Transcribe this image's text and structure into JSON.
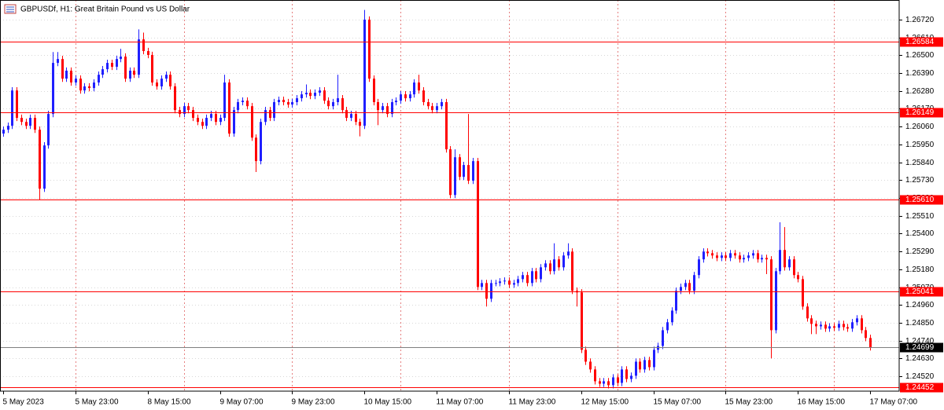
{
  "chart_data": {
    "type": "candlestick",
    "title": "GBPUSDf, H1:  Great Britain Pound vs US Dollar",
    "up_color": "#1f1fff",
    "down_color": "#ff0000",
    "hline_color": "#ff0000",
    "grid": true,
    "ylim": [
      1.24428,
      1.26841
    ],
    "yticks": [
      {
        "value": 1.2672,
        "label": "1.26720"
      },
      {
        "value": 1.2661,
        "label": "1.26610"
      },
      {
        "value": 1.265,
        "label": "1.26500"
      },
      {
        "value": 1.2639,
        "label": "1.26390"
      },
      {
        "value": 1.2628,
        "label": "1.26280"
      },
      {
        "value": 1.2617,
        "label": "1.26170"
      },
      {
        "value": 1.2606,
        "label": "1.26060"
      },
      {
        "value": 1.2595,
        "label": "1.25950"
      },
      {
        "value": 1.2584,
        "label": "1.25840"
      },
      {
        "value": 1.2573,
        "label": "1.25730"
      },
      {
        "value": 1.2562,
        "label": "1.25620"
      },
      {
        "value": 1.2551,
        "label": "1.25510"
      },
      {
        "value": 1.254,
        "label": "1.25400"
      },
      {
        "value": 1.2529,
        "label": "1.25290"
      },
      {
        "value": 1.2518,
        "label": "1.25180"
      },
      {
        "value": 1.2507,
        "label": "1.25070"
      },
      {
        "value": 1.2496,
        "label": "1.24960"
      },
      {
        "value": 1.2485,
        "label": "1.24850"
      },
      {
        "value": 1.2474,
        "label": "1.24740"
      },
      {
        "value": 1.2463,
        "label": "1.24630"
      },
      {
        "value": 1.2452,
        "label": "1.24520"
      }
    ],
    "hlines": [
      1.26584,
      1.26149,
      {
        "value": 1.2561,
        "label": "1.25610"
      },
      1.25041,
      1.24452
    ],
    "categories": [
      "5 May 2023",
      null,
      null,
      null,
      null,
      null,
      null,
      null,
      null,
      null,
      null,
      null,
      null,
      null,
      null,
      null,
      "5 May 23:00",
      null,
      null,
      null,
      null,
      null,
      null,
      null,
      null,
      null,
      null,
      null,
      null,
      null,
      null,
      null,
      "8 May 15:00",
      null,
      null,
      null,
      null,
      null,
      null,
      null,
      null,
      null,
      null,
      null,
      null,
      null,
      null,
      null,
      "9 May 07:00",
      null,
      null,
      null,
      null,
      null,
      null,
      null,
      null,
      null,
      null,
      null,
      null,
      null,
      null,
      null,
      "9 May 23:00",
      null,
      null,
      null,
      null,
      null,
      null,
      null,
      null,
      null,
      null,
      null,
      null,
      null,
      null,
      null,
      "10 May 15:00",
      null,
      null,
      null,
      null,
      null,
      null,
      null,
      null,
      null,
      null,
      null,
      null,
      null,
      null,
      null,
      "11 May 07:00",
      null,
      null,
      null,
      null,
      null,
      null,
      null,
      null,
      null,
      null,
      null,
      null,
      null,
      null,
      null,
      "11 May 23:00",
      null,
      null,
      null,
      null,
      null,
      null,
      null,
      null,
      null,
      null,
      null,
      null,
      null,
      null,
      null,
      "12 May 15:00",
      null,
      null,
      null,
      null,
      null,
      null,
      null,
      null,
      null,
      null,
      null,
      null,
      null,
      null,
      null,
      "15 May 07:00",
      null,
      null,
      null,
      null,
      null,
      null,
      null,
      null,
      null,
      null,
      null,
      null,
      null,
      null,
      null,
      "15 May 23:00",
      null,
      null,
      null,
      null,
      null,
      null,
      null,
      null,
      null,
      null,
      null,
      null,
      null,
      null,
      null,
      "16 May 15:00",
      null,
      null,
      null,
      null,
      null,
      null,
      null,
      null,
      null,
      null,
      null,
      null,
      null,
      null,
      null,
      "17 May 07:00"
    ],
    "open": [
      1.26017,
      1.26041,
      1.26065,
      1.26283,
      1.26114,
      1.26089,
      1.26065,
      1.26114,
      1.26041,
      1.25677,
      1.25944,
      1.26138,
      1.26453,
      1.26477,
      1.26356,
      1.26405,
      1.26332,
      1.26356,
      1.26283,
      1.26308,
      1.26298,
      1.26332,
      1.2638,
      1.26414,
      1.26453,
      1.26429,
      1.26477,
      1.26492,
      1.26356,
      1.26405,
      1.2638,
      1.26598,
      1.26526,
      1.26502,
      1.26332,
      1.26308,
      1.26356,
      1.2638,
      1.26308,
      1.26162,
      1.26138,
      1.26186,
      1.26162,
      1.26114,
      1.26089,
      1.26065,
      1.26114,
      1.26138,
      1.26089,
      1.26114,
      1.26332,
      1.26017,
      1.26162,
      1.26211,
      1.2622,
      1.26186,
      1.25992,
      1.25847,
      1.26089,
      1.26162,
      1.26114,
      1.26211,
      1.26225,
      1.26211,
      1.26196,
      1.26211,
      1.26235,
      1.26259,
      1.26269,
      1.26249,
      1.26269,
      1.26283,
      1.2622,
      1.26186,
      1.26211,
      1.26235,
      1.26162,
      1.26114,
      1.26138,
      1.26089,
      1.26065,
      1.2672,
      1.26356,
      1.26211,
      1.26162,
      1.26186,
      1.26138,
      1.26211,
      1.2622,
      1.26259,
      1.26235,
      1.26259,
      1.26332,
      1.26283,
      1.26211,
      1.26186,
      1.26162,
      1.26186,
      1.26211,
      1.2592,
      1.25638,
      1.25871,
      1.2575,
      1.25823,
      1.25726,
      1.25847,
      1.25071,
      1.25095,
      1.24998,
      1.25095,
      1.25095,
      1.25105,
      1.2511,
      1.25085,
      1.25095,
      1.25119,
      1.25144,
      1.25095,
      1.25168,
      1.25119,
      1.25192,
      1.25216,
      1.25168,
      1.25241,
      1.25192,
      1.25265,
      1.25289,
      1.25047,
      1.25037,
      1.24683,
      1.2461,
      1.24562,
      1.24489,
      1.24474,
      1.24489,
      1.24465,
      1.24513,
      1.24479,
      1.24562,
      1.24503,
      1.24523,
      1.2461,
      1.24562,
      1.2462,
      1.24576,
      1.24683,
      1.24707,
      1.24804,
      1.24853,
      1.24925,
      1.25047,
      1.25071,
      1.25095,
      1.25047,
      1.25144,
      1.25241,
      1.25289,
      1.25279,
      1.25265,
      1.2525,
      1.25265,
      1.2525,
      1.25279,
      1.25265,
      1.25241,
      1.2525,
      1.25265,
      1.25279,
      1.25241,
      1.2525,
      1.25241,
      1.24804,
      1.25168,
      1.25299,
      1.25192,
      1.25241,
      1.25144,
      1.25119,
      1.2495,
      1.24877,
      1.24843,
      1.24828,
      1.24838,
      1.24814,
      1.24828,
      1.24819,
      1.24843,
      1.24823,
      1.24814,
      1.24853,
      1.24877,
      1.24804,
      1.24756
    ],
    "high": [
      1.26061,
      1.26085,
      1.26303,
      1.26303,
      1.26134,
      1.26109,
      1.26134,
      1.26134,
      1.26061,
      1.25964,
      1.26158,
      1.2652,
      1.2652,
      1.26497,
      1.26425,
      1.26425,
      1.26376,
      1.26376,
      1.26328,
      1.26328,
      1.26352,
      1.264,
      1.26434,
      1.26473,
      1.26473,
      1.26497,
      1.2654,
      1.26512,
      1.26425,
      1.26425,
      1.2666,
      1.2664,
      1.26546,
      1.26522,
      1.26352,
      1.26376,
      1.264,
      1.264,
      1.26328,
      1.26182,
      1.26206,
      1.26206,
      1.26182,
      1.26134,
      1.26109,
      1.26134,
      1.26158,
      1.26158,
      1.26134,
      1.2638,
      1.26352,
      1.26182,
      1.26231,
      1.2624,
      1.2624,
      1.26206,
      1.26012,
      1.26109,
      1.26182,
      1.26182,
      1.26231,
      1.26245,
      1.26245,
      1.26231,
      1.26231,
      1.26255,
      1.26279,
      1.2632,
      1.26289,
      1.26289,
      1.26303,
      1.26303,
      1.2624,
      1.26231,
      1.2638,
      1.26255,
      1.26182,
      1.26158,
      1.26158,
      1.26109,
      1.2678,
      1.2674,
      1.26376,
      1.26231,
      1.26206,
      1.26206,
      1.26231,
      1.2624,
      1.26279,
      1.26279,
      1.26279,
      1.26352,
      1.2638,
      1.26303,
      1.26231,
      1.26206,
      1.26206,
      1.26231,
      1.26231,
      1.2594,
      1.2592,
      1.25891,
      1.25843,
      1.26138,
      1.25867,
      1.25867,
      1.25115,
      1.25115,
      1.25115,
      1.25115,
      1.25125,
      1.2513,
      1.2513,
      1.25115,
      1.25139,
      1.25164,
      1.25164,
      1.25188,
      1.25188,
      1.25212,
      1.25236,
      1.25236,
      1.2534,
      1.25261,
      1.25285,
      1.2534,
      1.25309,
      1.25067,
      1.25057,
      1.24703,
      1.2463,
      1.24582,
      1.24509,
      1.24509,
      1.24509,
      1.24533,
      1.24533,
      1.24582,
      1.24582,
      1.24543,
      1.2463,
      1.2463,
      1.2464,
      1.2464,
      1.24703,
      1.24727,
      1.24824,
      1.24873,
      1.24945,
      1.25067,
      1.25091,
      1.25115,
      1.25115,
      1.25164,
      1.25261,
      1.25309,
      1.25309,
      1.25299,
      1.25285,
      1.25285,
      1.25285,
      1.25299,
      1.25299,
      1.25285,
      1.2527,
      1.25285,
      1.25299,
      1.25299,
      1.2527,
      1.2527,
      1.25261,
      1.25188,
      1.2547,
      1.2544,
      1.25261,
      1.25261,
      1.25164,
      1.25139,
      1.2497,
      1.24897,
      1.24863,
      1.24858,
      1.24858,
      1.24848,
      1.24848,
      1.24863,
      1.24863,
      1.24843,
      1.24873,
      1.24897,
      1.24897,
      1.24824,
      1.24776
    ],
    "low": [
      1.25997,
      1.26021,
      1.26045,
      1.26094,
      1.26069,
      1.26045,
      1.26045,
      1.26021,
      1.2561,
      1.25657,
      1.25924,
      1.26118,
      1.26433,
      1.26336,
      1.26336,
      1.26312,
      1.26312,
      1.26263,
      1.26263,
      1.26278,
      1.26278,
      1.26312,
      1.2636,
      1.26394,
      1.26409,
      1.26409,
      1.26457,
      1.26336,
      1.26336,
      1.2636,
      1.2636,
      1.26506,
      1.26482,
      1.26312,
      1.26288,
      1.26288,
      1.26336,
      1.26288,
      1.26142,
      1.26118,
      1.26118,
      1.26142,
      1.26094,
      1.26069,
      1.26045,
      1.26045,
      1.26094,
      1.26069,
      1.26069,
      1.26094,
      1.25997,
      1.25997,
      1.26142,
      1.26191,
      1.26166,
      1.25972,
      1.2578,
      1.25827,
      1.26069,
      1.26094,
      1.26094,
      1.26191,
      1.26191,
      1.26176,
      1.26176,
      1.26191,
      1.26215,
      1.26239,
      1.26229,
      1.26229,
      1.26249,
      1.262,
      1.26166,
      1.26166,
      1.26191,
      1.26142,
      1.26094,
      1.26094,
      1.26069,
      1.26,
      1.26045,
      1.26336,
      1.26191,
      1.26069,
      1.26142,
      1.26118,
      1.26118,
      1.26191,
      1.262,
      1.26215,
      1.26215,
      1.26239,
      1.26263,
      1.26191,
      1.26166,
      1.26142,
      1.26142,
      1.26166,
      1.259,
      1.25618,
      1.25618,
      1.2573,
      1.2573,
      1.25706,
      1.25706,
      1.25051,
      1.25051,
      1.2495,
      1.24978,
      1.25075,
      1.25075,
      1.25085,
      1.25065,
      1.25065,
      1.25075,
      1.25099,
      1.25075,
      1.25075,
      1.25099,
      1.25099,
      1.25172,
      1.25148,
      1.25148,
      1.25172,
      1.25172,
      1.25245,
      1.25027,
      1.2495,
      1.24663,
      1.2459,
      1.24542,
      1.24469,
      1.24454,
      1.24454,
      1.24445,
      1.24445,
      1.24459,
      1.24459,
      1.24483,
      1.24483,
      1.24503,
      1.24542,
      1.24542,
      1.24556,
      1.24556,
      1.24663,
      1.24687,
      1.24784,
      1.24833,
      1.24905,
      1.25027,
      1.25051,
      1.25027,
      1.25027,
      1.25124,
      1.25221,
      1.25259,
      1.25245,
      1.2523,
      1.2523,
      1.2523,
      1.2523,
      1.25245,
      1.25221,
      1.25221,
      1.2523,
      1.25245,
      1.25221,
      1.25221,
      1.2515,
      1.2463,
      1.24784,
      1.25148,
      1.25172,
      1.25172,
      1.25124,
      1.25099,
      1.2493,
      1.24857,
      1.2478,
      1.2478,
      1.24808,
      1.24794,
      1.24794,
      1.24799,
      1.24799,
      1.24803,
      1.24794,
      1.24794,
      1.24833,
      1.24784,
      1.24736,
      1.24679
    ],
    "close": [
      1.26041,
      1.26065,
      1.26283,
      1.26114,
      1.26089,
      1.26065,
      1.26114,
      1.26041,
      1.25677,
      1.25944,
      1.26138,
      1.26453,
      1.26477,
      1.26356,
      1.26405,
      1.26332,
      1.26356,
      1.26283,
      1.26308,
      1.26298,
      1.26332,
      1.2638,
      1.26414,
      1.26453,
      1.26429,
      1.26477,
      1.26492,
      1.26356,
      1.26405,
      1.2638,
      1.26598,
      1.26526,
      1.26502,
      1.26332,
      1.26308,
      1.26356,
      1.2638,
      1.26308,
      1.26162,
      1.26138,
      1.26186,
      1.26162,
      1.26114,
      1.26089,
      1.26065,
      1.26114,
      1.26138,
      1.26089,
      1.26114,
      1.26332,
      1.26017,
      1.26162,
      1.26211,
      1.2622,
      1.26186,
      1.25992,
      1.25847,
      1.26089,
      1.26162,
      1.26114,
      1.26211,
      1.26225,
      1.26211,
      1.26196,
      1.26211,
      1.26235,
      1.26259,
      1.26269,
      1.26249,
      1.26269,
      1.26283,
      1.2622,
      1.26186,
      1.26211,
      1.26235,
      1.26162,
      1.26114,
      1.26138,
      1.26089,
      1.26065,
      1.2672,
      1.26356,
      1.26211,
      1.26162,
      1.26186,
      1.26138,
      1.26211,
      1.2622,
      1.26259,
      1.26235,
      1.26259,
      1.26332,
      1.26283,
      1.26211,
      1.26186,
      1.26162,
      1.26186,
      1.26211,
      1.2592,
      1.25638,
      1.25871,
      1.2575,
      1.25823,
      1.25726,
      1.25847,
      1.25071,
      1.25095,
      1.24998,
      1.25095,
      1.25095,
      1.25105,
      1.2511,
      1.25085,
      1.25095,
      1.25119,
      1.25144,
      1.25095,
      1.25168,
      1.25119,
      1.25192,
      1.25216,
      1.25168,
      1.25241,
      1.25192,
      1.25265,
      1.25289,
      1.25047,
      1.25037,
      1.24683,
      1.2461,
      1.24562,
      1.24489,
      1.24474,
      1.24489,
      1.24465,
      1.24513,
      1.24479,
      1.24562,
      1.24503,
      1.24523,
      1.2461,
      1.24562,
      1.2462,
      1.24576,
      1.24683,
      1.24707,
      1.24804,
      1.24853,
      1.24925,
      1.25047,
      1.25071,
      1.25095,
      1.25047,
      1.25144,
      1.25241,
      1.25289,
      1.25279,
      1.25265,
      1.2525,
      1.25265,
      1.2525,
      1.25279,
      1.25265,
      1.25241,
      1.2525,
      1.25265,
      1.25279,
      1.25241,
      1.2525,
      1.25241,
      1.24804,
      1.25168,
      1.25299,
      1.25192,
      1.25241,
      1.25144,
      1.25119,
      1.2495,
      1.24877,
      1.24843,
      1.24828,
      1.24838,
      1.24814,
      1.24828,
      1.24819,
      1.24843,
      1.24823,
      1.24814,
      1.24853,
      1.24877,
      1.24804,
      1.24756,
      1.24699
    ]
  }
}
